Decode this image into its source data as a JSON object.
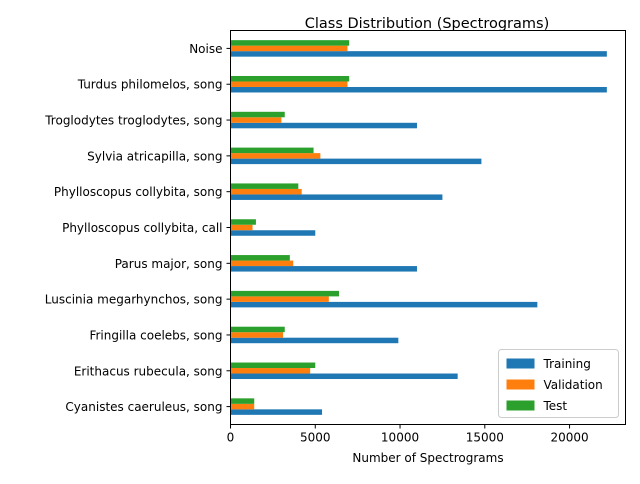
{
  "chart_data": {
    "type": "bar",
    "orientation": "horizontal",
    "title": "Class Distribution (Spectrograms)",
    "xlabel": "Number of Spectrograms",
    "ylabel": "",
    "xlim": [
      0,
      23300
    ],
    "xticks": [
      0,
      5000,
      10000,
      15000,
      20000
    ],
    "xtick_labels": [
      "0",
      "5000",
      "10000",
      "15000",
      "20000"
    ],
    "grid": false,
    "legend_position": "lower-right",
    "categories": [
      "Cyanistes caeruleus, song",
      "Erithacus rubecula, song",
      "Fringilla coelebs, song",
      "Luscinia megarhynchos, song",
      "Parus major, song",
      "Phylloscopus collybita, call",
      "Phylloscopus collybita, song",
      "Sylvia atricapilla, song",
      "Troglodytes troglodytes, song",
      "Turdus philomelos, song",
      "Noise"
    ],
    "series": [
      {
        "name": "Training",
        "color": "#1f77b4",
        "values": [
          5400,
          13400,
          9900,
          18100,
          11000,
          5000,
          12500,
          14800,
          11000,
          22200,
          22200
        ]
      },
      {
        "name": "Validation",
        "color": "#ff7f0e",
        "values": [
          1400,
          4700,
          3100,
          5800,
          3700,
          1300,
          4200,
          5300,
          3000,
          6900,
          6900
        ]
      },
      {
        "name": "Test",
        "color": "#2ca02c",
        "values": [
          1400,
          5000,
          3200,
          6400,
          3500,
          1500,
          4000,
          4900,
          3200,
          7000,
          7000
        ]
      }
    ]
  }
}
